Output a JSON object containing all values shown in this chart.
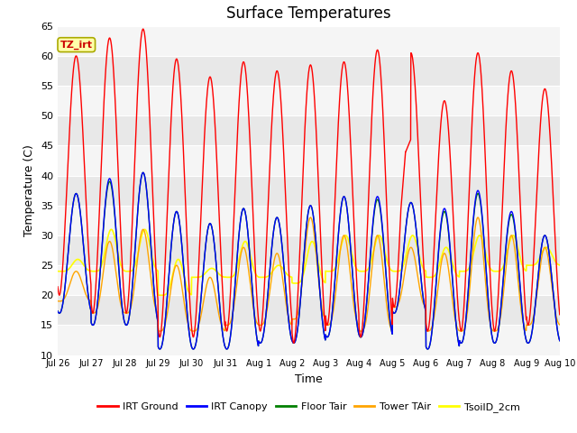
{
  "title": "Surface Temperatures",
  "xlabel": "Time",
  "ylabel": "Temperature (C)",
  "ylim": [
    10,
    65
  ],
  "xlim": [
    0,
    15
  ],
  "tick_labels": [
    "Jul 26",
    "Jul 27",
    "Jul 28",
    "Jul 29",
    "Jul 30",
    "Jul 31",
    "Aug 1",
    "Aug 2",
    "Aug 3",
    "Aug 4",
    "Aug 5",
    "Aug 6",
    "Aug 7",
    "Aug 8",
    "Aug 9",
    "Aug 10"
  ],
  "annotation_text": "TZ_irt",
  "annotation_color": "#cc0000",
  "annotation_bg": "#ffffaa",
  "annotation_edge": "#aaaa00",
  "legend_entries": [
    "IRT Ground",
    "IRT Canopy",
    "Floor Tair",
    "Tower TAir",
    "TsoilD_2cm"
  ],
  "line_colors": [
    "red",
    "blue",
    "green",
    "orange",
    "yellow"
  ],
  "plot_bg_light": "#f5f5f5",
  "plot_bg_dark": "#e8e8e8",
  "n_days": 15,
  "samples_per_day": 144,
  "day_peaks_irt": [
    60,
    63,
    64.5,
    59.5,
    56.5,
    59,
    57.5,
    58.5,
    59,
    61,
    60.5,
    52.5,
    60.5,
    57.5,
    54.5
  ],
  "day_peaks_canopy": [
    37,
    39.5,
    40.5,
    34,
    32,
    34.5,
    33,
    35,
    36.5,
    36.5,
    35.5,
    34.5,
    37.5,
    34,
    30
  ],
  "day_peaks_floor": [
    37,
    39,
    40.5,
    34,
    32,
    34.5,
    33,
    35,
    36.5,
    36,
    35.5,
    34,
    37,
    33.5,
    30
  ],
  "day_peaks_tower": [
    24,
    29,
    31,
    25,
    23,
    28,
    27,
    33,
    30,
    30,
    28,
    27,
    33,
    30,
    28
  ],
  "day_peaks_soil": [
    26,
    31,
    31,
    26,
    24.5,
    29,
    25,
    29,
    30,
    30,
    30,
    28,
    30,
    30,
    28
  ],
  "night_mins_canopy": [
    17,
    15,
    15,
    11,
    11,
    11,
    12,
    12,
    13,
    13,
    17,
    11,
    12,
    12,
    12
  ],
  "night_mins_floor": [
    17,
    15,
    15,
    11,
    11,
    11,
    12,
    12,
    13,
    13,
    17,
    11,
    12,
    12,
    12
  ],
  "night_mins_tower": [
    19,
    17,
    17,
    14,
    14,
    15,
    15,
    16,
    15,
    14,
    18,
    14,
    14,
    14,
    15
  ],
  "night_mins_soil": [
    24,
    24,
    24,
    20,
    23,
    23,
    23,
    22,
    24,
    24,
    24,
    23,
    24,
    24,
    25
  ],
  "night_mins_irt": [
    20,
    17,
    17,
    13,
    13,
    14,
    14,
    12,
    15,
    13,
    18,
    14,
    14,
    14,
    15
  ],
  "peak_phase": 0.58,
  "trough_phase": 0.05
}
